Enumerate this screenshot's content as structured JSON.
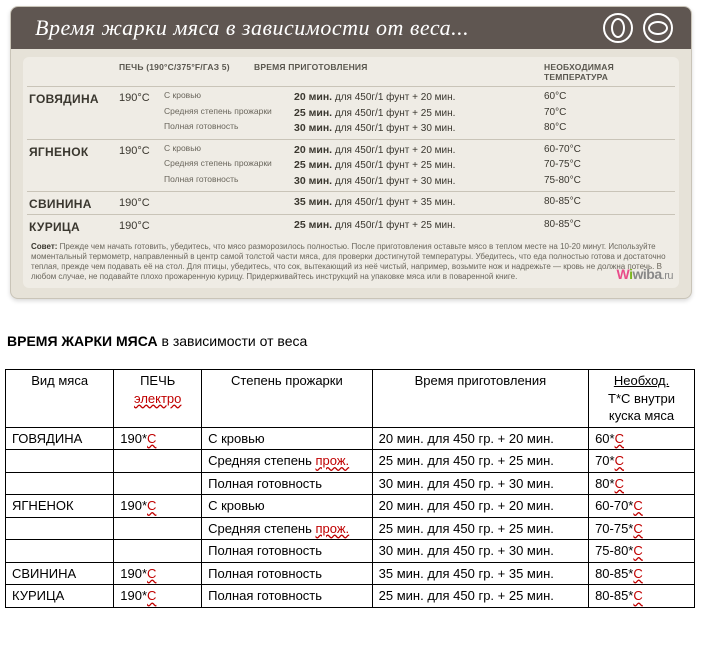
{
  "card": {
    "title": "Время жарки мяса в зависимости от веса...",
    "sub_oven": "Печь (190°C/375°F/ГАЗ 5)",
    "sub_time": "Время приготовления",
    "sub_temp": "Необходимая температура",
    "meats": [
      {
        "name": "ГОВЯДИНА",
        "oven": "190°C",
        "rows": [
          {
            "done": "С кровью",
            "time_b": "20 мин.",
            "time_rest": " для 450г/1 фунт  + 20 мин.",
            "temp": "60°C"
          },
          {
            "done": "Средняя степень прожарки",
            "time_b": "25 мин.",
            "time_rest": " для 450г/1 фунт  + 25 мин.",
            "temp": "70°C"
          },
          {
            "done": "Полная готовность",
            "time_b": "30 мин.",
            "time_rest": " для 450г/1 фунт  + 30 мин.",
            "temp": "80°C"
          }
        ]
      },
      {
        "name": "ЯГНЕНОК",
        "oven": "190°C",
        "rows": [
          {
            "done": "С кровью",
            "time_b": "20 мин.",
            "time_rest": " для 450г/1 фунт  + 20 мин.",
            "temp": "60-70°C"
          },
          {
            "done": "Средняя степень прожарки",
            "time_b": "25 мин.",
            "time_rest": " для 450г/1 фунт  + 25 мин.",
            "temp": "70-75°C"
          },
          {
            "done": "Полная готовность",
            "time_b": "30 мин.",
            "time_rest": " для 450г/1 фунт  + 30 мин.",
            "temp": "75-80°C"
          }
        ]
      },
      {
        "name": "СВИНИНА",
        "oven": "190°C",
        "rows": [
          {
            "done": "",
            "time_b": "35 мин.",
            "time_rest": " для 450г/1 фунт  + 35 мин.",
            "temp": "80-85°C"
          }
        ]
      },
      {
        "name": "КУРИЦА",
        "oven": "190°C",
        "rows": [
          {
            "done": "",
            "time_b": "25 мин.",
            "time_rest": " для 450г/1 фунт  + 25 мин.",
            "temp": "80-85°C"
          }
        ]
      }
    ],
    "tip_label": "Совет:",
    "tip_text": " Прежде чем начать готовить, убедитесь, что мясо разморозилось полностью. После приготовления оставьте мясо в теплом месте на 10-20 минут. Используйте моментальный термометр, направленный в центр самой толстой части мяса, для проверки достигнутой температуры. Убедитесь, что еда полностью готова и достаточно теплая, прежде чем подавать её на стол. Для птицы, убедитесь, что сок, вытекающий из неё чистый, например, возьмите нож и надрежьте — кровь не должна потечь. В любом случае, не подавайте плохо прожаренную курицу. Придерживайтесь инструкций на упаковке мяса или в поваренной книге.",
    "watermark_text": "wiba",
    "watermark_suffix": ".ru"
  },
  "plain": {
    "heading_bold": "ВРЕМЯ ЖАРКИ МЯСА",
    "heading_rest": " в зависимости от веса",
    "headers": {
      "meat": "Вид мяса",
      "oven_top": "ПЕЧЬ",
      "oven_sub": "электро",
      "doneness": "Степень прожарки",
      "time": "Время приготовления",
      "temp_top": "Необход.",
      "temp_mid": "Т*С внутри",
      "temp_bot": "куска мяса"
    },
    "rows": [
      {
        "meat": "ГОВЯДИНА",
        "oven": "190*С",
        "done_plain": "С кровью",
        "done_red": "",
        "time": "20 мин. для 450 гр. + 20 мин.",
        "temp_pre": "60*",
        "temp_red": "С"
      },
      {
        "meat": "",
        "oven": "",
        "done_plain": "Средняя степень ",
        "done_red": "прож.",
        "time": "25 мин. для 450 гр. + 25 мин.",
        "temp_pre": "70*",
        "temp_red": "С"
      },
      {
        "meat": "",
        "oven": "",
        "done_plain": "Полная готовность",
        "done_red": "",
        "time": "30 мин. для 450 гр. + 30 мин.",
        "temp_pre": "80*",
        "temp_red": "С"
      },
      {
        "meat": "ЯГНЕНОК",
        "oven": "190*С",
        "done_plain": "С кровью",
        "done_red": "",
        "time": "20 мин. для 450 гр. + 20 мин.",
        "temp_pre": "60-70*",
        "temp_red": "С"
      },
      {
        "meat": "",
        "oven": "",
        "done_plain": "Средняя степень ",
        "done_red": "прож.",
        "time": "25 мин. для 450 гр. + 25 мин.",
        "temp_pre": "70-75*",
        "temp_red": "С"
      },
      {
        "meat": "",
        "oven": "",
        "done_plain": "Полная готовность",
        "done_red": "",
        "time": "30 мин. для 450 гр. + 30 мин.",
        "temp_pre": "75-80*",
        "temp_red": "С"
      },
      {
        "meat": "СВИНИНА",
        "oven": "190*С",
        "done_plain": "Полная готовность",
        "done_red": "",
        "time": "35 мин. для 450 гр. + 35 мин.",
        "temp_pre": "80-85*",
        "temp_red": "С"
      },
      {
        "meat": "КУРИЦА",
        "oven": "190*С",
        "done_plain": "Полная готовность",
        "done_red": "",
        "time": "25 мин. для 450 гр. + 25 мин.",
        "temp_pre": "80-85*",
        "temp_red": "С"
      }
    ]
  }
}
